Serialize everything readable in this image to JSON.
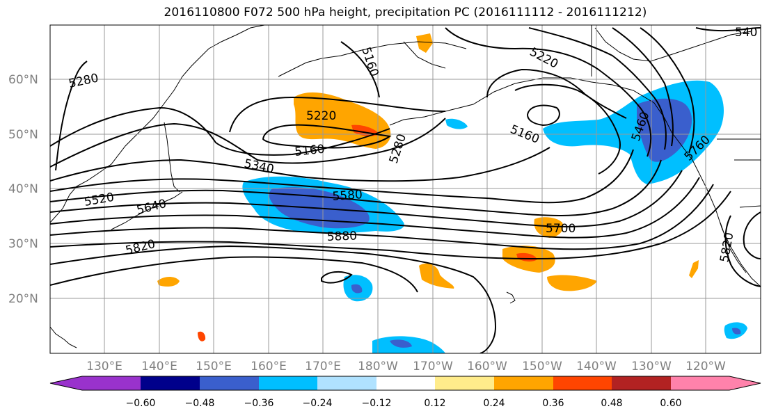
{
  "title": "2016110800 F072 500 hPa height, precipitation PC (2016111112 - 2016111212)",
  "map": {
    "lat_labels": [
      "60°N",
      "50°N",
      "40°N",
      "30°N",
      "20°N"
    ],
    "lon_labels": [
      "130°E",
      "140°E",
      "150°E",
      "160°E",
      "170°E",
      "180°W",
      "170°W",
      "160°W",
      "150°W",
      "140°W",
      "130°W",
      "120°W"
    ],
    "contour_labels": [
      "5280",
      "5160",
      "5220",
      "5220",
      "5160",
      "5160",
      "5280",
      "5340",
      "5520",
      "5580",
      "5640",
      "5820",
      "5880",
      "5700",
      "5460",
      "5760",
      "5820",
      "540"
    ]
  },
  "colorbar": {
    "tick_labels": [
      "−0.60",
      "−0.48",
      "−0.36",
      "−0.24",
      "−0.12",
      "0.12",
      "0.24",
      "0.36",
      "0.48",
      "0.60"
    ],
    "colors": [
      "#9932cc",
      "#00008b",
      "#3a5fcd",
      "#00bfff",
      "#b0e2ff",
      "#ffffff",
      "#ffec8b",
      "#ffa500",
      "#ff4500",
      "#b22222",
      "#ff82ab"
    ]
  }
}
